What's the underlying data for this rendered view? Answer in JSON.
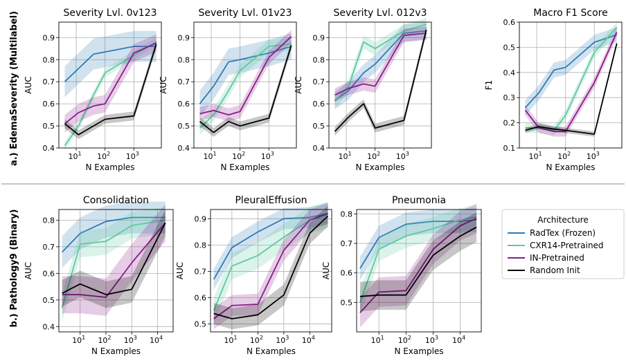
{
  "row_labels": [
    "a.) EdemaSeverity (Multilabel)",
    "b.) Pathology9 (Binary)"
  ],
  "legend": {
    "title": "Architecture",
    "entries": [
      {
        "name": "RadTex (Frozen)",
        "color": "#2c7bb6"
      },
      {
        "name": "CXR14-Pretrained",
        "color": "#5dc9a0"
      },
      {
        "name": "IN-Pretrained",
        "color": "#8b1a8b"
      },
      {
        "name": "Random Init",
        "color": "#000000"
      }
    ]
  },
  "chart_data": [
    {
      "type": "line",
      "title": "Severity Lvl. 0v123",
      "xlabel": "N Examples",
      "ylabel": "AUC",
      "xscale": "log",
      "xlim": [
        2.5,
        9000
      ],
      "ylim": [
        0.4,
        0.97
      ],
      "yticks": [
        0.4,
        0.5,
        0.6,
        0.7,
        0.8,
        0.9
      ],
      "xticks": [
        1,
        2,
        3
      ],
      "x": [
        4,
        12,
        40,
        100,
        1000,
        6000
      ],
      "series": [
        {
          "name": "RadTex (Frozen)",
          "color": "#2c7bb6",
          "values": [
            0.7,
            0.76,
            0.825,
            0.835,
            0.86,
            0.86
          ],
          "band": 0.07
        },
        {
          "name": "CXR14-Pretrained",
          "color": "#5dc9a0",
          "values": [
            0.41,
            0.5,
            0.64,
            0.74,
            0.82,
            0.88
          ],
          "band": 0.02
        },
        {
          "name": "IN-Pretrained",
          "color": "#8b1a8b",
          "values": [
            0.51,
            0.56,
            0.59,
            0.6,
            0.83,
            0.875
          ],
          "band": 0.04
        },
        {
          "name": "Random Init",
          "color": "#000000",
          "values": [
            0.51,
            0.46,
            0.5,
            0.53,
            0.545,
            0.87
          ],
          "band": 0.02
        }
      ]
    },
    {
      "type": "line",
      "title": "Severity Lvl. 01v23",
      "xlabel": "N Examples",
      "ylabel": "AUC",
      "xscale": "log",
      "xlim": [
        2.5,
        9000
      ],
      "ylim": [
        0.4,
        0.97
      ],
      "yticks": [
        0.4,
        0.5,
        0.6,
        0.7,
        0.8,
        0.9
      ],
      "xticks": [
        1,
        2,
        3
      ],
      "x": [
        4,
        12,
        40,
        100,
        1000,
        6000
      ],
      "series": [
        {
          "name": "RadTex (Frozen)",
          "color": "#2c7bb6",
          "values": [
            0.6,
            0.68,
            0.79,
            0.8,
            0.83,
            0.86
          ],
          "band": 0.06
        },
        {
          "name": "CXR14-Pretrained",
          "color": "#5dc9a0",
          "values": [
            0.49,
            0.55,
            0.66,
            0.75,
            0.86,
            0.87
          ],
          "band": 0.03
        },
        {
          "name": "IN-Pretrained",
          "color": "#8b1a8b",
          "values": [
            0.555,
            0.57,
            0.55,
            0.565,
            0.81,
            0.905
          ],
          "band": 0.03
        },
        {
          "name": "Random Init",
          "color": "#000000",
          "values": [
            0.52,
            0.47,
            0.52,
            0.5,
            0.535,
            0.865
          ],
          "band": 0.02
        }
      ]
    },
    {
      "type": "line",
      "title": "Severity Lvl. 012v3",
      "xlabel": "N Examples",
      "ylabel": "AUC",
      "xscale": "log",
      "xlim": [
        2.5,
        9000
      ],
      "ylim": [
        0.4,
        0.97
      ],
      "yticks": [
        0.4,
        0.5,
        0.6,
        0.7,
        0.8,
        0.9
      ],
      "xticks": [
        1,
        2,
        3
      ],
      "x": [
        4,
        12,
        40,
        100,
        1000,
        6000
      ],
      "series": [
        {
          "name": "RadTex (Frozen)",
          "color": "#2c7bb6",
          "values": [
            0.615,
            0.66,
            0.74,
            0.78,
            0.92,
            0.93
          ],
          "band": 0.04
        },
        {
          "name": "CXR14-Pretrained",
          "color": "#5dc9a0",
          "values": [
            0.61,
            0.68,
            0.88,
            0.85,
            0.93,
            0.96
          ],
          "band": 0.03
        },
        {
          "name": "IN-Pretrained",
          "color": "#8b1a8b",
          "values": [
            0.64,
            0.67,
            0.69,
            0.68,
            0.91,
            0.92
          ],
          "band": 0.03
        },
        {
          "name": "Random Init",
          "color": "#000000",
          "values": [
            0.475,
            0.54,
            0.6,
            0.49,
            0.525,
            0.935
          ],
          "band": 0.02
        }
      ]
    },
    {
      "type": "line",
      "title": "Macro F1 Score",
      "xlabel": "N Examples",
      "ylabel": "F1",
      "xscale": "log",
      "xlim": [
        2.5,
        9000
      ],
      "ylim": [
        0.1,
        0.6
      ],
      "yticks": [
        0.1,
        0.2,
        0.3,
        0.4,
        0.5,
        0.6
      ],
      "xticks": [
        1,
        2,
        3
      ],
      "x": [
        4,
        12,
        40,
        100,
        1000,
        6000
      ],
      "series": [
        {
          "name": "RadTex (Frozen)",
          "color": "#2c7bb6",
          "values": [
            0.26,
            0.32,
            0.41,
            0.42,
            0.52,
            0.55
          ],
          "band": 0.03
        },
        {
          "name": "CXR14-Pretrained",
          "color": "#5dc9a0",
          "values": [
            0.18,
            0.18,
            0.17,
            0.23,
            0.48,
            0.58
          ],
          "band": 0.02
        },
        {
          "name": "IN-Pretrained",
          "color": "#8b1a8b",
          "values": [
            0.25,
            0.18,
            0.165,
            0.165,
            0.36,
            0.56
          ],
          "band": 0.02
        },
        {
          "name": "Random Init",
          "color": "#000000",
          "values": [
            0.17,
            0.185,
            0.175,
            0.17,
            0.155,
            0.515
          ],
          "band": 0.01
        }
      ]
    },
    {
      "type": "line",
      "title": "Consolidation",
      "xlabel": "N Examples",
      "ylabel": "AUC",
      "xscale": "log",
      "xlim": [
        1.5,
        40000
      ],
      "ylim": [
        0.38,
        0.84
      ],
      "yticks": [
        0.4,
        0.5,
        0.6,
        0.7,
        0.8
      ],
      "xticks": [
        1,
        2,
        3,
        4
      ],
      "x": [
        2,
        10,
        100,
        1000,
        20000
      ],
      "series": [
        {
          "name": "RadTex (Frozen)",
          "color": "#2c7bb6",
          "values": [
            0.68,
            0.75,
            0.795,
            0.81,
            0.81
          ],
          "band": 0.06
        },
        {
          "name": "CXR14-Pretrained",
          "color": "#5dc9a0",
          "values": [
            0.47,
            0.71,
            0.72,
            0.78,
            0.8
          ],
          "band": 0.05
        },
        {
          "name": "IN-Pretrained",
          "color": "#8b1a8b",
          "values": [
            0.52,
            0.52,
            0.51,
            0.64,
            0.79
          ],
          "band": 0.07
        },
        {
          "name": "Random Init",
          "color": "#000000",
          "values": [
            0.525,
            0.56,
            0.52,
            0.54,
            0.79
          ],
          "band": 0.05
        }
      ]
    },
    {
      "type": "line",
      "title": "PleuralEffusion",
      "xlabel": "N Examples",
      "ylabel": "AUC",
      "xscale": "log",
      "xlim": [
        1.5,
        70000
      ],
      "ylim": [
        0.47,
        0.935
      ],
      "yticks": [
        0.5,
        0.6,
        0.7,
        0.8,
        0.9
      ],
      "xticks": [
        1,
        2,
        3,
        4
      ],
      "x": [
        2,
        10,
        100,
        1000,
        10000,
        50000
      ],
      "series": [
        {
          "name": "RadTex (Frozen)",
          "color": "#2c7bb6",
          "values": [
            0.67,
            0.79,
            0.85,
            0.9,
            0.905,
            0.92
          ],
          "band": 0.04
        },
        {
          "name": "CXR14-Pretrained",
          "color": "#5dc9a0",
          "values": [
            0.55,
            0.72,
            0.76,
            0.83,
            0.895,
            0.915
          ],
          "band": 0.05
        },
        {
          "name": "IN-Pretrained",
          "color": "#8b1a8b",
          "values": [
            0.52,
            0.57,
            0.575,
            0.78,
            0.895,
            0.92
          ],
          "band": 0.04
        },
        {
          "name": "Random Init",
          "color": "#000000",
          "values": [
            0.54,
            0.52,
            0.535,
            0.61,
            0.845,
            0.91
          ],
          "band": 0.04
        }
      ]
    },
    {
      "type": "line",
      "title": "Pneumonia",
      "xlabel": "N Examples",
      "ylabel": "AUC",
      "xscale": "log",
      "xlim": [
        1.5,
        60000
      ],
      "ylim": [
        0.4,
        0.815
      ],
      "yticks": [
        0.5,
        0.6,
        0.7,
        0.8
      ],
      "xticks": [
        1,
        2,
        3,
        4
      ],
      "x": [
        2,
        10,
        100,
        1000,
        10000,
        40000
      ],
      "series": [
        {
          "name": "RadTex (Frozen)",
          "color": "#2c7bb6",
          "values": [
            0.615,
            0.72,
            0.765,
            0.775,
            0.775,
            0.78
          ],
          "band": 0.04
        },
        {
          "name": "CXR14-Pretrained",
          "color": "#5dc9a0",
          "values": [
            0.5,
            0.68,
            0.725,
            0.75,
            0.78,
            0.79
          ],
          "band": 0.04
        },
        {
          "name": "IN-Pretrained",
          "color": "#8b1a8b",
          "values": [
            0.465,
            0.535,
            0.54,
            0.68,
            0.76,
            0.785
          ],
          "band": 0.05
        },
        {
          "name": "Random Init",
          "color": "#000000",
          "values": [
            0.52,
            0.525,
            0.525,
            0.66,
            0.725,
            0.755
          ],
          "band": 0.05
        }
      ]
    }
  ]
}
